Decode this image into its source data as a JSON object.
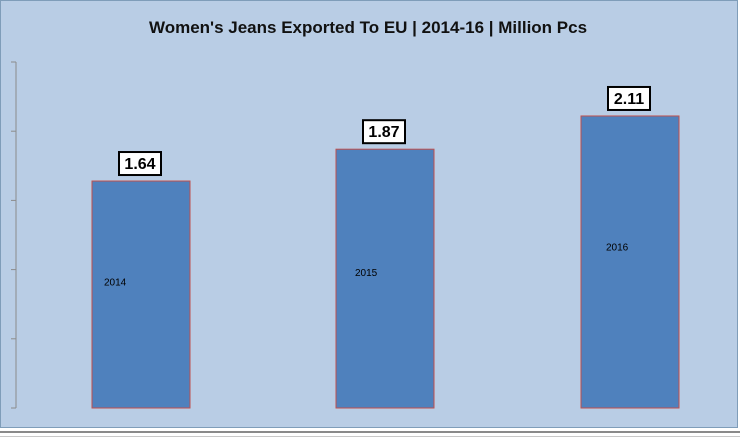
{
  "chart_data": {
    "type": "bar",
    "title": "Women's Jeans Exported To EU  |  2014-16  |  Million Pcs",
    "categories": [
      "2014",
      "2015",
      "2016"
    ],
    "values": [
      1.64,
      1.87,
      2.11
    ],
    "data_labels": [
      "1.64",
      "1.87",
      "2.11"
    ],
    "xlabel": "",
    "ylabel": "",
    "ylim": [
      0,
      2.5
    ],
    "grid": false,
    "legend": "none",
    "colors": {
      "bar_fill": "#4f81bd",
      "bar_stroke": "#c0504d",
      "plot_background": "#b9cde5"
    }
  }
}
